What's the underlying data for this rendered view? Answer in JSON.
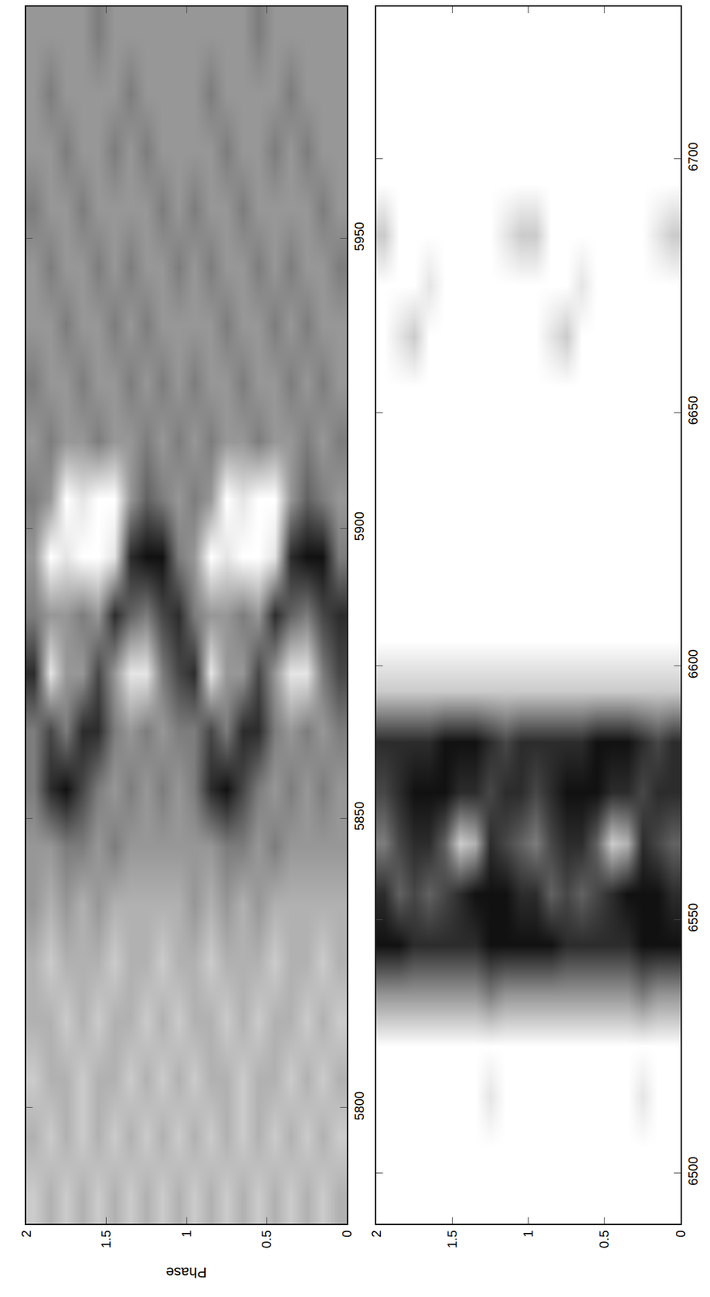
{
  "chart_data": [
    {
      "type": "heatmap",
      "x_label": "Phase",
      "x": [
        0.05,
        0.15,
        0.25,
        0.35,
        0.45,
        0.55,
        0.65,
        0.75,
        0.85,
        0.95,
        1.05,
        1.15,
        1.25,
        1.35,
        1.45,
        1.55,
        1.65,
        1.75,
        1.85,
        1.95
      ],
      "y": [
        5785,
        5795,
        5805,
        5815,
        5825,
        5835,
        5845,
        5855,
        5865,
        5875,
        5885,
        5895,
        5905,
        5915,
        5925,
        5935,
        5945,
        5955,
        5965,
        5975,
        5985
      ],
      "z": [
        [
          3,
          2,
          3,
          2,
          3,
          3,
          4,
          4,
          5,
          7,
          8,
          5,
          4,
          5,
          4,
          4,
          5,
          4,
          4,
          4,
          4
        ],
        [
          2,
          3,
          2,
          3,
          2,
          3,
          4,
          5,
          4,
          5,
          7,
          9,
          5,
          4,
          5,
          4,
          4,
          5,
          4,
          4,
          4
        ],
        [
          3,
          2,
          3,
          2,
          3,
          3,
          4,
          4,
          5,
          1,
          5,
          9,
          6,
          5,
          4,
          5,
          4,
          4,
          5,
          4,
          4
        ],
        [
          2,
          3,
          2,
          3,
          3,
          3,
          4,
          5,
          4,
          1,
          6,
          8,
          4,
          4,
          5,
          4,
          5,
          4,
          4,
          5,
          4
        ],
        [
          3,
          2,
          3,
          3,
          2,
          3,
          5,
          4,
          5,
          4,
          8,
          1,
          0,
          4,
          4,
          5,
          4,
          4,
          5,
          4,
          4
        ],
        [
          2,
          3,
          3,
          2,
          3,
          4,
          4,
          5,
          8,
          7,
          4,
          0,
          0,
          5,
          4,
          4,
          5,
          4,
          4,
          4,
          5
        ],
        [
          3,
          2,
          2,
          3,
          3,
          3,
          5,
          7,
          8,
          4,
          5,
          0,
          1,
          4,
          5,
          4,
          4,
          5,
          4,
          4,
          4
        ],
        [
          2,
          3,
          3,
          2,
          3,
          4,
          5,
          9,
          5,
          4,
          4,
          1,
          0,
          4,
          4,
          5,
          4,
          4,
          5,
          4,
          4
        ],
        [
          3,
          2,
          3,
          3,
          2,
          3,
          4,
          8,
          7,
          1,
          4,
          0,
          4,
          5,
          4,
          4,
          5,
          4,
          4,
          5,
          4
        ],
        [
          2,
          3,
          2,
          3,
          3,
          4,
          4,
          5,
          5,
          8,
          5,
          4,
          5,
          4,
          5,
          4,
          4,
          5,
          4,
          4,
          4
        ],
        [
          3,
          2,
          3,
          2,
          3,
          3,
          4,
          4,
          5,
          7,
          8,
          5,
          4,
          5,
          4,
          4,
          5,
          4,
          4,
          4,
          4
        ],
        [
          2,
          3,
          2,
          3,
          2,
          3,
          4,
          5,
          4,
          5,
          7,
          9,
          5,
          4,
          5,
          4,
          4,
          5,
          4,
          4,
          4
        ],
        [
          3,
          2,
          3,
          2,
          3,
          3,
          4,
          4,
          5,
          1,
          5,
          9,
          6,
          5,
          4,
          5,
          4,
          4,
          5,
          4,
          4
        ],
        [
          2,
          3,
          2,
          3,
          3,
          3,
          4,
          5,
          4,
          1,
          6,
          8,
          4,
          4,
          5,
          4,
          5,
          4,
          4,
          5,
          4
        ],
        [
          3,
          2,
          3,
          3,
          2,
          3,
          5,
          4,
          5,
          4,
          8,
          1,
          0,
          4,
          4,
          5,
          4,
          4,
          5,
          4,
          4
        ],
        [
          2,
          3,
          3,
          2,
          3,
          4,
          4,
          5,
          8,
          7,
          4,
          0,
          0,
          5,
          4,
          4,
          5,
          4,
          4,
          4,
          5
        ],
        [
          3,
          2,
          2,
          3,
          3,
          3,
          5,
          7,
          8,
          4,
          5,
          0,
          1,
          4,
          5,
          4,
          4,
          5,
          4,
          4,
          4
        ],
        [
          2,
          3,
          3,
          2,
          3,
          4,
          5,
          9,
          5,
          4,
          4,
          1,
          0,
          4,
          4,
          5,
          4,
          4,
          5,
          4,
          4
        ],
        [
          3,
          2,
          3,
          3,
          2,
          3,
          4,
          8,
          7,
          1,
          4,
          0,
          4,
          5,
          4,
          4,
          5,
          4,
          4,
          5,
          4
        ],
        [
          2,
          3,
          2,
          3,
          3,
          4,
          4,
          5,
          5,
          8,
          5,
          4,
          5,
          4,
          5,
          4,
          4,
          5,
          4,
          4,
          4
        ]
      ],
      "zlim": [
        0,
        9
      ],
      "xlim": [
        2,
        0
      ],
      "xticks": [
        0,
        0.5,
        1,
        1.5,
        2
      ],
      "ylim": [
        5780,
        5990
      ],
      "yticks": [
        5800,
        5850,
        5900,
        5950
      ]
    },
    {
      "type": "heatmap",
      "x": [
        0.05,
        0.15,
        0.25,
        0.35,
        0.45,
        0.55,
        0.65,
        0.75,
        0.85,
        0.95,
        1.05,
        1.15,
        1.25,
        1.35,
        1.45,
        1.55,
        1.65,
        1.75,
        1.85,
        1.95
      ],
      "y": [
        6495,
        6505,
        6515,
        6525,
        6535,
        6545,
        6555,
        6565,
        6575,
        6585,
        6595,
        6605,
        6615,
        6625,
        6635,
        6645,
        6655,
        6665,
        6675,
        6685,
        6695,
        6705,
        6715,
        6725
      ],
      "z": [
        [
          0,
          0,
          0,
          0,
          4,
          9,
          8,
          6,
          8,
          8,
          2,
          0,
          0,
          0,
          0,
          0,
          0,
          0,
          0,
          2,
          0,
          0,
          0,
          0
        ],
        [
          0,
          0,
          0,
          0,
          4,
          9,
          9,
          7,
          8,
          7,
          2,
          0,
          0,
          0,
          0,
          0,
          0,
          0,
          0,
          1,
          0,
          0,
          0,
          0
        ],
        [
          0,
          0,
          1,
          0,
          5,
          9,
          9,
          8,
          7,
          8,
          2,
          0,
          0,
          0,
          0,
          0,
          0,
          0,
          0,
          0,
          0,
          0,
          0,
          0
        ],
        [
          0,
          0,
          0,
          0,
          4,
          8,
          9,
          3,
          8,
          9,
          2,
          0,
          0,
          0,
          0,
          0,
          0,
          0,
          0,
          0,
          0,
          0,
          0,
          0
        ],
        [
          0,
          0,
          0,
          0,
          4,
          8,
          8,
          2,
          8,
          9,
          2,
          0,
          0,
          0,
          0,
          0,
          0,
          0,
          0,
          0,
          0,
          0,
          0,
          0
        ],
        [
          0,
          0,
          0,
          0,
          4,
          8,
          7,
          6,
          9,
          9,
          2,
          0,
          0,
          0,
          0,
          0,
          0,
          0,
          0,
          0,
          0,
          0,
          0,
          0
        ],
        [
          0,
          0,
          0,
          0,
          4,
          8,
          6,
          8,
          9,
          8,
          2,
          0,
          0,
          0,
          0,
          0,
          0,
          0,
          1,
          0,
          0,
          0,
          0,
          0
        ],
        [
          0,
          0,
          0,
          0,
          4,
          8,
          7,
          8,
          9,
          8,
          2,
          0,
          0,
          0,
          0,
          0,
          0,
          2,
          0,
          0,
          0,
          0,
          0,
          0
        ],
        [
          0,
          0,
          0,
          0,
          4,
          9,
          6,
          7,
          8,
          8,
          2,
          0,
          0,
          0,
          0,
          0,
          0,
          1,
          0,
          0,
          0,
          0,
          0,
          0
        ],
        [
          0,
          0,
          0,
          0,
          4,
          9,
          8,
          5,
          7,
          8,
          2,
          0,
          0,
          0,
          0,
          0,
          0,
          0,
          0,
          2,
          0,
          0,
          0,
          0
        ],
        [
          0,
          0,
          0,
          0,
          4,
          9,
          8,
          6,
          8,
          8,
          2,
          0,
          0,
          0,
          0,
          0,
          0,
          0,
          0,
          2,
          0,
          0,
          0,
          0
        ],
        [
          0,
          0,
          0,
          0,
          4,
          9,
          9,
          7,
          8,
          7,
          2,
          0,
          0,
          0,
          0,
          0,
          0,
          0,
          0,
          1,
          0,
          0,
          0,
          0
        ],
        [
          0,
          0,
          1,
          0,
          5,
          9,
          9,
          8,
          7,
          8,
          2,
          0,
          0,
          0,
          0,
          0,
          0,
          0,
          0,
          0,
          0,
          0,
          0,
          0
        ],
        [
          0,
          0,
          0,
          0,
          4,
          8,
          9,
          3,
          8,
          9,
          2,
          0,
          0,
          0,
          0,
          0,
          0,
          0,
          0,
          0,
          0,
          0,
          0,
          0
        ],
        [
          0,
          0,
          0,
          0,
          4,
          8,
          8,
          2,
          8,
          9,
          2,
          0,
          0,
          0,
          0,
          0,
          0,
          0,
          0,
          0,
          0,
          0,
          0,
          0
        ],
        [
          0,
          0,
          0,
          0,
          4,
          8,
          7,
          6,
          9,
          9,
          2,
          0,
          0,
          0,
          0,
          0,
          0,
          0,
          0,
          0,
          0,
          0,
          0,
          0
        ],
        [
          0,
          0,
          0,
          0,
          4,
          8,
          6,
          8,
          9,
          8,
          2,
          0,
          0,
          0,
          0,
          0,
          0,
          0,
          1,
          0,
          0,
          0,
          0,
          0
        ],
        [
          0,
          0,
          0,
          0,
          4,
          8,
          7,
          8,
          9,
          8,
          2,
          0,
          0,
          0,
          0,
          0,
          0,
          2,
          0,
          0,
          0,
          0,
          0,
          0
        ],
        [
          0,
          0,
          0,
          0,
          4,
          9,
          6,
          7,
          8,
          8,
          2,
          0,
          0,
          0,
          0,
          0,
          0,
          1,
          0,
          0,
          0,
          0,
          0,
          0
        ],
        [
          0,
          0,
          0,
          0,
          4,
          9,
          8,
          5,
          7,
          8,
          2,
          0,
          0,
          0,
          0,
          0,
          0,
          0,
          0,
          2,
          0,
          0,
          0,
          0
        ]
      ],
      "zlim": [
        0,
        9
      ],
      "xlim": [
        2,
        0
      ],
      "xticks": [
        0,
        0.5,
        1,
        1.5,
        2
      ],
      "ylim": [
        6490,
        6730
      ],
      "yticks": [
        6500,
        6550,
        6600,
        6650,
        6700
      ]
    }
  ]
}
